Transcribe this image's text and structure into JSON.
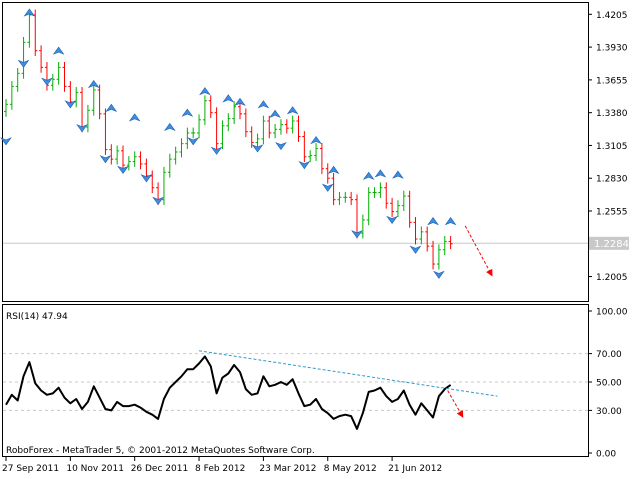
{
  "window": {
    "terminal_label": "RoboForex - MetaTrader 5, © 2001-2012 MetaQuotes Software Corp."
  },
  "colors": {
    "background": "#ffffff",
    "frame": "#000000",
    "grid": "#c8c8c8",
    "bull_bar": "#00b000",
    "bear_bar": "#ff0000",
    "fractal_arrow": "#3a8ee6",
    "rsi_line": "#000000",
    "trendline": "#3399cc",
    "forecast_arrow": "#ff0000",
    "price_tag_bg": "#c8c8c8",
    "price_tag_text": "#ffffff"
  },
  "chart_data": [
    {
      "type": "line",
      "panel": "price",
      "series_style": "bars",
      "ylim": [
        1.18,
        1.43
      ],
      "y_ticks": [
        "1.4205",
        "1.3930",
        "1.3655",
        "1.3380",
        "1.3105",
        "1.2830",
        "1.2555",
        "1.2005"
      ],
      "current_price": "1.2284",
      "x_tick_labels": [
        "27 Sep 2011",
        "10 Nov 2011",
        "26 Dec 2011",
        "8 Feb 2012",
        "23 Mar 2012",
        "8 May 2012",
        "21 Jun 2012"
      ],
      "x_tick_index": [
        0,
        11,
        22,
        33,
        44,
        55,
        66
      ],
      "close": [
        1.345,
        1.36,
        1.371,
        1.397,
        1.42,
        1.39,
        1.376,
        1.361,
        1.366,
        1.376,
        1.36,
        1.347,
        1.355,
        1.326,
        1.34,
        1.357,
        1.337,
        1.307,
        1.299,
        1.306,
        1.294,
        1.297,
        1.301,
        1.295,
        1.285,
        1.275,
        1.265,
        1.288,
        1.299,
        1.305,
        1.312,
        1.321,
        1.321,
        1.332,
        1.348,
        1.338,
        1.312,
        1.327,
        1.333,
        1.343,
        1.337,
        1.322,
        1.313,
        1.316,
        1.331,
        1.321,
        1.324,
        1.328,
        1.325,
        1.331,
        1.318,
        1.301,
        1.302,
        1.308,
        1.291,
        1.283,
        1.265,
        1.267,
        1.267,
        1.265,
        1.237,
        1.248,
        1.271,
        1.271,
        1.275,
        1.262,
        1.255,
        1.26,
        1.268,
        1.246,
        1.232,
        1.238,
        1.226,
        1.211,
        1.223,
        1.23,
        1.228
      ],
      "fractals_up": [
        [
          4,
          1.425
        ],
        [
          9,
          1.393
        ],
        [
          15,
          1.365
        ],
        [
          18,
          1.345
        ],
        [
          22,
          1.337
        ],
        [
          28,
          1.329
        ],
        [
          31,
          1.341
        ],
        [
          34,
          1.359
        ],
        [
          38,
          1.353
        ],
        [
          40,
          1.35
        ],
        [
          44,
          1.348
        ],
        [
          46,
          1.34
        ],
        [
          49,
          1.343
        ],
        [
          53,
          1.318
        ],
        [
          56,
          1.293
        ],
        [
          62,
          1.288
        ],
        [
          64,
          1.29
        ],
        [
          67,
          1.289
        ],
        [
          73,
          1.25
        ],
        [
          76,
          1.25
        ]
      ],
      "fractals_down": [
        [
          0,
          1.311
        ],
        [
          3,
          1.376
        ],
        [
          7,
          1.361
        ],
        [
          11,
          1.342
        ],
        [
          13,
          1.322
        ],
        [
          17,
          1.296
        ],
        [
          20,
          1.287
        ],
        [
          24,
          1.28
        ],
        [
          26,
          1.261
        ],
        [
          32,
          1.311
        ],
        [
          36,
          1.303
        ],
        [
          43,
          1.305
        ],
        [
          47,
          1.307
        ],
        [
          51,
          1.291
        ],
        [
          55,
          1.272
        ],
        [
          60,
          1.233
        ],
        [
          66,
          1.245
        ],
        [
          70,
          1.22
        ],
        [
          74,
          1.199
        ]
      ],
      "forecast_arrow": {
        "from": [
          78.5,
          1.243
        ],
        "to": [
          83,
          1.202
        ]
      }
    },
    {
      "type": "line",
      "panel": "indicator",
      "title": "RSI(14) 47.94",
      "ylim": [
        0,
        100
      ],
      "y_ticks": [
        "100.00",
        "70.00",
        "50.00",
        "30.00",
        "0.00"
      ],
      "levels": [
        70,
        50,
        30
      ],
      "values": [
        34,
        41,
        37,
        54,
        64,
        49,
        44,
        41,
        42,
        46,
        39,
        35,
        38,
        31,
        36,
        47,
        39,
        31,
        30,
        36,
        33,
        33,
        34,
        32,
        29,
        27,
        24,
        38,
        46,
        50,
        54,
        59,
        59,
        63,
        68,
        61,
        42,
        53,
        56,
        62,
        57,
        45,
        41,
        42,
        54,
        47,
        48,
        50,
        48,
        52,
        42,
        33,
        34,
        38,
        31,
        28,
        24,
        26,
        27,
        26,
        17,
        28,
        43,
        44,
        46,
        40,
        36,
        38,
        44,
        34,
        27,
        35,
        30,
        25,
        40,
        45,
        47.94
      ],
      "trendline": {
        "from": [
          33,
          72
        ],
        "to": [
          84,
          40
        ]
      },
      "forecast_arrow": {
        "from": [
          75.5,
          44
        ],
        "to": [
          78,
          26
        ]
      }
    }
  ]
}
